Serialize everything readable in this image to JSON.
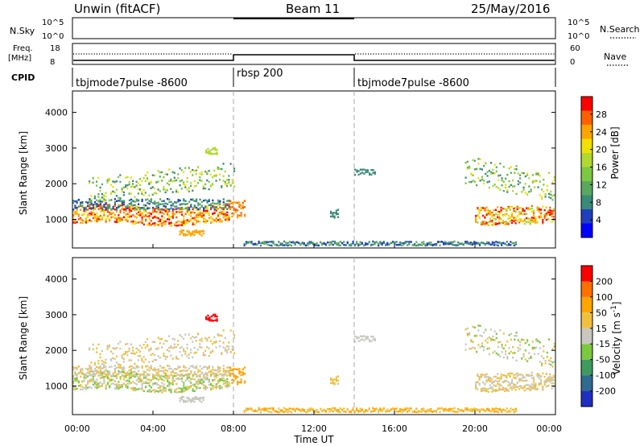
{
  "header": {
    "station": "Unwin (fitACF)",
    "beam": "Beam 11",
    "date": "25/May/2016"
  },
  "top_panels": {
    "nsky_label": "N.Sky",
    "nsky_ticks": [
      "10^5",
      "10^0"
    ],
    "nsearch_label": "N.Search",
    "freq_label_1": "Freq.",
    "freq_label_2": "[MHz]",
    "freq_ticks": [
      "18",
      "8"
    ],
    "nave_ticks": [
      "60",
      "0"
    ],
    "nave_label": "Nave",
    "cpid_label": "CPID",
    "cpid_segments": [
      "tbjmode7pulse -8600",
      "rbsp 200",
      "tbjmode7pulse -8600"
    ]
  },
  "colors": {
    "power_scale": [
      "#0000ff",
      "#1f3fbf",
      "#3a8a7a",
      "#5aa860",
      "#7cc840",
      "#b0d830",
      "#f0e000",
      "#ffa500",
      "#ff6000",
      "#ff0000"
    ],
    "velocity_scale": [
      "#1f2fbf",
      "#2f6a90",
      "#3f9a60",
      "#7cc840",
      "#c8c8c0",
      "#f0c040",
      "#ffa500",
      "#ff7000",
      "#ff0000"
    ]
  },
  "chart_data": [
    {
      "type": "heatmap",
      "name": "Power",
      "ylabel": "Slant Range [km]",
      "yticks": [
        "1000",
        "2000",
        "3000",
        "4000"
      ],
      "ylim": [
        200,
        4600
      ],
      "xlim": [
        "00:00",
        "24:00"
      ],
      "colorbar_label": "Power [dB]",
      "colorbar_ticks": [
        "4",
        "8",
        "12",
        "16",
        "20",
        "24",
        "28"
      ],
      "colorbar_range": [
        0,
        32
      ]
    },
    {
      "type": "heatmap",
      "name": "Velocity",
      "ylabel": "Slant Range [km]",
      "yticks": [
        "1000",
        "2000",
        "3000",
        "4000"
      ],
      "ylim": [
        200,
        4600
      ],
      "xlim": [
        "00:00",
        "24:00"
      ],
      "colorbar_label": "Velocity [m s^-1]",
      "colorbar_ticks": [
        "200",
        "100",
        "50",
        "15",
        "-15",
        "-50",
        "-100",
        "-200"
      ]
    }
  ],
  "time_axis": {
    "ticks": [
      "00:00",
      "04:00",
      "08:00",
      "12:00",
      "16:00",
      "20:00",
      "00:00"
    ],
    "label": "Time UT"
  }
}
